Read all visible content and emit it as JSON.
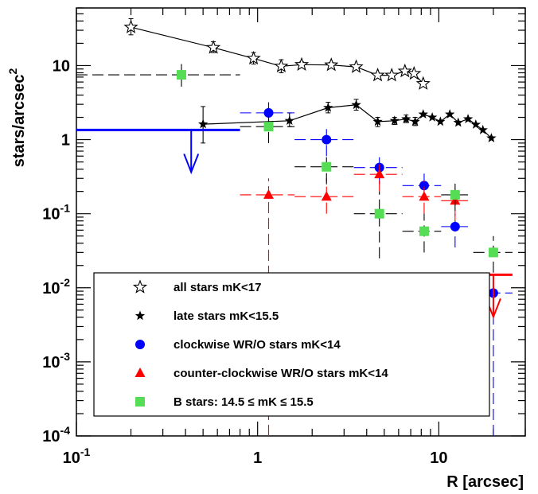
{
  "chart_data": {
    "type": "scatter",
    "title": "",
    "xlabel": "R [arcsec]",
    "ylabel_main": "stars/arcsec",
    "ylabel_sup": "2",
    "x_scale": "log",
    "y_scale": "log",
    "xlim": [
      0.1,
      30
    ],
    "ylim": [
      0.0001,
      60
    ],
    "x_tick_labels": [
      {
        "value": 0.1,
        "base": "10",
        "exp": "-1"
      },
      {
        "value": 1,
        "base": "1",
        "exp": ""
      },
      {
        "value": 10,
        "base": "10",
        "exp": ""
      }
    ],
    "y_tick_labels": [
      {
        "value": 0.0001,
        "base": "10",
        "exp": "-4"
      },
      {
        "value": 0.001,
        "base": "10",
        "exp": "-3"
      },
      {
        "value": 0.01,
        "base": "10",
        "exp": "-2"
      },
      {
        "value": 0.1,
        "base": "10",
        "exp": "-1"
      },
      {
        "value": 1,
        "base": "1",
        "exp": ""
      },
      {
        "value": 10,
        "base": "10",
        "exp": ""
      }
    ],
    "grid": false,
    "legend_position": "bottom-left",
    "series": [
      {
        "name": "all stars mK<17",
        "marker": "open-star",
        "color": "#000000",
        "line": true,
        "points": [
          {
            "x": 0.2,
            "y": 33,
            "ylo": 26,
            "yhi": 43
          },
          {
            "x": 0.57,
            "y": 17.5,
            "ylo": 15,
            "yhi": 21
          },
          {
            "x": 0.95,
            "y": 12.5,
            "ylo": 10.5,
            "yhi": 15
          },
          {
            "x": 1.35,
            "y": 9.8,
            "ylo": 8.0,
            "yhi": 12
          },
          {
            "x": 1.75,
            "y": 10.3,
            "ylo": 9.5,
            "yhi": 11.2
          },
          {
            "x": 2.55,
            "y": 10.2,
            "ylo": 9.5,
            "yhi": 11
          },
          {
            "x": 3.5,
            "y": 9.6,
            "ylo": 9.0,
            "yhi": 10.3
          },
          {
            "x": 4.6,
            "y": 7.4
          },
          {
            "x": 5.5,
            "y": 7.4
          },
          {
            "x": 6.5,
            "y": 8.4
          },
          {
            "x": 7.3,
            "y": 7.8
          },
          {
            "x": 8.2,
            "y": 5.7
          }
        ]
      },
      {
        "name": "late stars mK<15.5",
        "marker": "filled-star",
        "color": "#000000",
        "line": true,
        "points": [
          {
            "x": 0.5,
            "y": 1.62,
            "ylo": 0.9,
            "yhi": 2.8
          },
          {
            "x": 1.5,
            "y": 1.8,
            "ylo": 1.5,
            "yhi": 2.3
          },
          {
            "x": 2.45,
            "y": 2.7,
            "ylo": 2.3,
            "yhi": 3.2
          },
          {
            "x": 3.5,
            "y": 2.95,
            "ylo": 2.5,
            "yhi": 3.5
          },
          {
            "x": 4.6,
            "y": 1.75,
            "ylo": 1.5,
            "yhi": 2.0
          },
          {
            "x": 5.7,
            "y": 1.8,
            "ylo": 1.6,
            "yhi": 2.0
          },
          {
            "x": 6.6,
            "y": 1.9,
            "ylo": 1.7,
            "yhi": 2.15
          },
          {
            "x": 7.4,
            "y": 1.75,
            "ylo": 1.55,
            "yhi": 2.0
          },
          {
            "x": 8.2,
            "y": 2.2
          },
          {
            "x": 9.2,
            "y": 2.0
          },
          {
            "x": 10.2,
            "y": 1.75
          },
          {
            "x": 11.5,
            "y": 2.2
          },
          {
            "x": 12.8,
            "y": 1.7
          },
          {
            "x": 14.5,
            "y": 1.9
          },
          {
            "x": 16.0,
            "y": 1.6
          },
          {
            "x": 17.5,
            "y": 1.35
          },
          {
            "x": 19.5,
            "y": 1.05
          }
        ]
      },
      {
        "name": "clockwise WR/O stars mK<14",
        "marker": "circle",
        "color": "#0000ff",
        "line": false,
        "points": [
          {
            "x": 1.15,
            "y": 2.3,
            "xlo": 0.8,
            "xhi": 1.6,
            "ylo": 1.5,
            "yhi": 3.2
          },
          {
            "x": 2.4,
            "y": 1.0,
            "xlo": 1.6,
            "xhi": 3.4,
            "ylo": 0.6,
            "yhi": 1.5
          },
          {
            "x": 4.7,
            "y": 0.42,
            "xlo": 3.4,
            "xhi": 6.3,
            "ylo": 0.25,
            "yhi": 0.6
          },
          {
            "x": 8.3,
            "y": 0.24,
            "xlo": 6.3,
            "xhi": 10.3,
            "ylo": 0.15,
            "yhi": 0.35
          },
          {
            "x": 12.3,
            "y": 0.067,
            "xlo": 10.3,
            "xhi": 14.5,
            "ylo": 0.035,
            "yhi": 0.1
          },
          {
            "x": 20.0,
            "y": 0.0085,
            "xlo": 15.5,
            "xhi": 25.5,
            "ylo": 0.0001,
            "yhi": 0.014
          }
        ]
      },
      {
        "name": "counter-clockwise WR/O stars mK<14",
        "marker": "triangle",
        "color": "#ff0000",
        "line": false,
        "points": [
          {
            "x": 1.15,
            "y": 0.18,
            "xlo": 0.8,
            "xhi": 1.6,
            "ylo": 0.0001,
            "yhi": 0.3
          },
          {
            "x": 2.4,
            "y": 0.17,
            "xlo": 1.6,
            "xhi": 3.4,
            "ylo": 0.1,
            "yhi": 0.3
          },
          {
            "x": 4.7,
            "y": 0.34,
            "xlo": 3.4,
            "xhi": 6.3,
            "ylo": 0.2,
            "yhi": 0.5
          },
          {
            "x": 8.3,
            "y": 0.17,
            "xlo": 6.3,
            "xhi": 10.3,
            "ylo": 0.1,
            "yhi": 0.28
          },
          {
            "x": 12.3,
            "y": 0.15,
            "xlo": 10.3,
            "xhi": 14.5,
            "ylo": 0.08,
            "yhi": 0.22
          }
        ]
      },
      {
        "name": "B stars: 14.5 ≤ mK ≤ 15.5",
        "marker": "square",
        "color": "#55dd55",
        "line": false,
        "points": [
          {
            "x": 0.38,
            "y": 7.5,
            "xlo": 0.1,
            "xhi": 0.8,
            "ylo": 5.2,
            "yhi": 10.5
          },
          {
            "x": 1.15,
            "y": 1.5,
            "xlo": 0.8,
            "xhi": 1.6,
            "ylo": 0.9,
            "yhi": 2.2
          },
          {
            "x": 2.4,
            "y": 0.43,
            "xlo": 1.6,
            "xhi": 3.4,
            "ylo": 0.25,
            "yhi": 0.65
          },
          {
            "x": 4.7,
            "y": 0.1,
            "xlo": 3.4,
            "xhi": 6.3,
            "ylo": 0.025,
            "yhi": 0.2
          },
          {
            "x": 8.3,
            "y": 0.058,
            "xlo": 6.3,
            "xhi": 10.3,
            "ylo": 0.03,
            "yhi": 0.1
          },
          {
            "x": 12.3,
            "y": 0.18,
            "xlo": 10.3,
            "xhi": 14.5,
            "ylo": 0.11,
            "yhi": 0.28
          },
          {
            "x": 20.0,
            "y": 0.03,
            "xlo": 15.5,
            "xhi": 25.5,
            "ylo": 0.016,
            "yhi": 0.05
          }
        ]
      }
    ],
    "upper_limits": [
      {
        "color": "#0000ff",
        "y": 1.35,
        "xlo": 0.1,
        "xhi": 0.8,
        "x_arrow": 0.43
      },
      {
        "color": "#ff0000",
        "y": 0.015,
        "xlo": 15.5,
        "xhi": 25.5,
        "x_arrow": 20.0
      }
    ],
    "legend": [
      {
        "marker": "open-star",
        "color": "#000000",
        "label": "all stars mK<17"
      },
      {
        "marker": "filled-star",
        "color": "#000000",
        "label": "late stars mK<15.5"
      },
      {
        "marker": "circle",
        "color": "#0000ff",
        "label": "clockwise WR/O stars mK<14"
      },
      {
        "marker": "triangle",
        "color": "#ff0000",
        "label": "counter-clockwise WR/O stars mK<14"
      },
      {
        "marker": "square",
        "color": "#55dd55",
        "label": "B stars: 14.5 ≤ mK ≤ 15.5"
      }
    ]
  }
}
